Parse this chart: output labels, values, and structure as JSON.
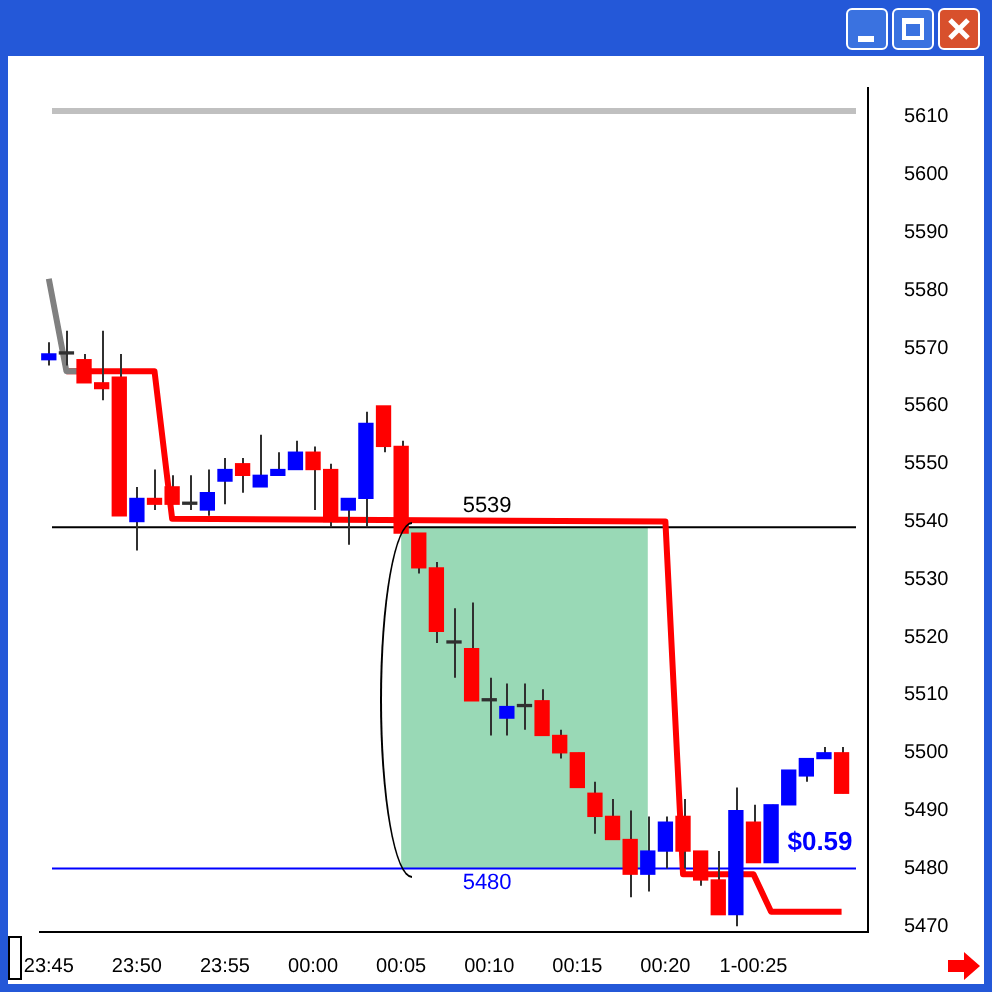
{
  "chart_data": {
    "type": "candlestick",
    "x": [
      "--01-01T23:45",
      "--01-01T23:46",
      "--01-01T23:47",
      "--01-01T23:48",
      "--01-01T23:49",
      "--01-01T23:50",
      "--01-01T23:51",
      "--01-01T23:52",
      "--01-01T23:53",
      "--01-01T23:54",
      "--01-01T23:55",
      "--01-01T23:56",
      "--01-01T23:57",
      "--01-01T23:58",
      "--01-01T23:59",
      "--01-02T00:00",
      "--01-02T00:01",
      "--01-02T00:02",
      "--01-02T00:03",
      "--01-02T00:04",
      "--01-02T00:05",
      "--01-02T00:06",
      "--01-02T00:07",
      "--01-02T00:08",
      "--01-02T00:09",
      "--01-02T00:10",
      "--01-02T00:11",
      "--01-02T00:12",
      "--01-02T00:13",
      "--01-02T00:14",
      "--01-02T00:15",
      "--01-02T00:16",
      "--01-02T00:17",
      "--01-02T00:18",
      "--01-02T00:19",
      "--01-02T00:20",
      "--01-02T00:21",
      "--01-02T00:22",
      "--01-02T00:23",
      "--01-02T00:24",
      "--01-02T00:25",
      "--01-02T00:26",
      "--01-02T00:27",
      "--01-02T00:28",
      "--01-02T00:29",
      "--01-02T00:30"
    ],
    "ohlc": [
      [
        5568,
        5571,
        5567,
        5569
      ],
      [
        5569,
        5573,
        5567,
        5569
      ],
      [
        5568,
        5569,
        5564,
        5564
      ],
      [
        5564,
        5573,
        5561,
        5563
      ],
      [
        5565,
        5569,
        5541,
        5541
      ],
      [
        5540,
        5546,
        5535,
        5544
      ],
      [
        5544,
        5549,
        5542,
        5543
      ],
      [
        5546,
        5548,
        5543,
        5543
      ],
      [
        5543,
        5548,
        5542,
        5543
      ],
      [
        5542,
        5549,
        5541,
        5545
      ],
      [
        5547,
        5551,
        5543,
        5549
      ],
      [
        5550,
        5551,
        5545,
        5548
      ],
      [
        5546,
        5555,
        5546,
        5548
      ],
      [
        5548,
        5552,
        5548,
        5549
      ],
      [
        5549,
        5554,
        5549,
        5552
      ],
      [
        5552,
        5553,
        5542,
        5549
      ],
      [
        5549,
        5550,
        5539,
        5540
      ],
      [
        5542,
        5544,
        5536,
        5544
      ],
      [
        5544,
        5559,
        5539,
        5557
      ],
      [
        5560,
        5560,
        5552,
        5553
      ],
      [
        5553,
        5554,
        5538,
        5538
      ],
      [
        5538,
        5538,
        5531,
        5532
      ],
      [
        5532,
        5533,
        5519,
        5521
      ],
      [
        5519,
        5525,
        5513,
        5519
      ],
      [
        5518,
        5526,
        5509,
        5509
      ],
      [
        5509,
        5513,
        5503,
        5509
      ],
      [
        5506,
        5512,
        5503,
        5508
      ],
      [
        5508,
        5512,
        5504,
        5508
      ],
      [
        5509,
        5511,
        5503,
        5503
      ],
      [
        5503,
        5504,
        5499,
        5500
      ],
      [
        5500,
        5500,
        5494,
        5494
      ],
      [
        5493,
        5495,
        5486,
        5489
      ],
      [
        5489,
        5492,
        5485,
        5485
      ],
      [
        5485,
        5490,
        5475,
        5479
      ],
      [
        5479,
        5489,
        5476,
        5483
      ],
      [
        5483,
        5489,
        5480,
        5488
      ],
      [
        5489,
        5492,
        5480,
        5483
      ],
      [
        5483,
        5483,
        5477,
        5478
      ],
      [
        5478,
        5483,
        5472,
        5472
      ],
      [
        5472,
        5494,
        5470,
        5490
      ],
      [
        5488,
        5491,
        5481,
        5481
      ],
      [
        5481,
        5491,
        5481,
        5491
      ],
      [
        5491,
        5497,
        5491,
        5497
      ],
      [
        5496,
        5499,
        5495,
        5499
      ],
      [
        5499,
        5501,
        5499,
        5500
      ],
      [
        5500,
        5501,
        5493,
        5493
      ]
    ],
    "colors": [
      "#0000ff",
      "#303030",
      "#ff0000",
      "#ff0000",
      "#ff0000",
      "#0000ff",
      "#ff0000",
      "#ff0000",
      "#303030",
      "#0000ff",
      "#0000ff",
      "#ff0000",
      "#0000ff",
      "#0000ff",
      "#0000ff",
      "#ff0000",
      "#ff0000",
      "#0000ff",
      "#0000ff",
      "#ff0000",
      "#ff0000",
      "#ff0000",
      "#ff0000",
      "#303030",
      "#ff0000",
      "#303030",
      "#0000ff",
      "#303030",
      "#ff0000",
      "#ff0000",
      "#ff0000",
      "#ff0000",
      "#ff0000",
      "#ff0000",
      "#0000ff",
      "#0000ff",
      "#ff0000",
      "#ff0000",
      "#ff0000",
      "#0000ff",
      "#ff0000",
      "#0000ff",
      "#0000ff",
      "#0000ff",
      "#0000ff",
      "#ff0000"
    ],
    "series": [
      {
        "type": "line",
        "color": "#808080",
        "x": [
          "--01-01T23:45",
          "--01-01T23:46",
          "--01-01T23:47"
        ],
        "values": [
          5582,
          5566,
          5566
        ]
      },
      {
        "type": "line",
        "color": "#ff0000",
        "x": [
          "--01-01T23:46",
          "--01-01T23:51",
          "--01-01T23:52",
          "--01-02T00:20",
          "--01-02T00:21",
          "--01-02T00:25",
          "--01-02T00:26",
          "--01-02T00:30"
        ],
        "values": [
          5566,
          5566,
          5540.5,
          5540,
          5479,
          5479,
          5472.5,
          5472.5
        ]
      }
    ],
    "xlim": [
      "--01-01T23:44:30",
      "--01-02T00:31:30"
    ],
    "xticks": [
      {
        "value": "--01-01T23:45",
        "label": "23:45"
      },
      {
        "value": "--01-01T23:50",
        "label": "23:50"
      },
      {
        "value": "--01-01T23:55",
        "label": "23:55"
      },
      {
        "value": "--01-02T00:00",
        "label": "00:00"
      },
      {
        "value": "--01-02T00:05",
        "label": "00:05"
      },
      {
        "value": "--01-02T00:10",
        "label": "00:10"
      },
      {
        "value": "--01-02T00:15",
        "label": "00:15"
      },
      {
        "value": "--01-02T00:20",
        "label": "00:20"
      },
      {
        "value": "--01-02T00:25",
        "label": "1-00:25"
      }
    ],
    "ylim": [
      5469,
      5615
    ],
    "yticks": [
      5470,
      5480,
      5490,
      5500,
      5510,
      5520,
      5530,
      5540,
      5550,
      5560,
      5570,
      5580,
      5590,
      5600,
      5610
    ],
    "ref_lines": [
      {
        "axis": "y",
        "value": 5611,
        "color": "#c0c0c0"
      },
      {
        "axis": "y",
        "value": 5539,
        "label": "5539",
        "color": "#000000"
      },
      {
        "axis": "y",
        "value": 5480,
        "label": "5480",
        "color": "#0000ff"
      }
    ],
    "bands": [
      {
        "axis": "x",
        "from": "--01-02T00:05",
        "to": "--01-02T00:19",
        "color": "#99d9b6"
      }
    ],
    "annotations": [
      "$0.59"
    ],
    "grid": false,
    "legend": false
  }
}
